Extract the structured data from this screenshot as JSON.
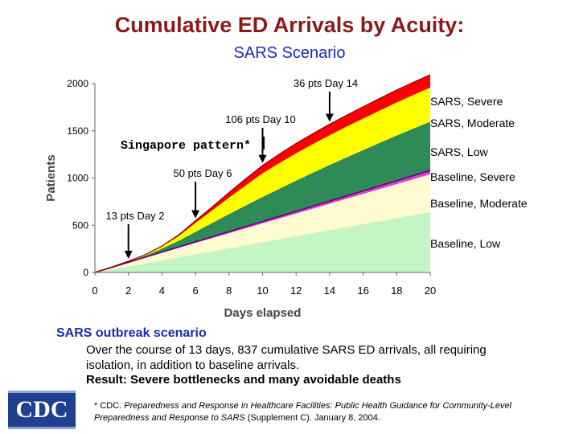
{
  "header": {
    "title": "Cumulative ED Arrivals by Acuity:",
    "subtitle": "SARS Scenario"
  },
  "chart_data": {
    "type": "area",
    "xlabel": "Days elapsed",
    "ylabel": "Patients",
    "xlim": [
      0,
      20
    ],
    "ylim": [
      0,
      2000
    ],
    "xticks": [
      0,
      2,
      4,
      6,
      8,
      10,
      12,
      14,
      16,
      18,
      20
    ],
    "yticks": [
      0,
      500,
      1000,
      1500,
      2000
    ],
    "x": [
      0,
      1,
      2,
      3,
      4,
      5,
      6,
      7,
      8,
      9,
      10,
      11,
      12,
      13,
      14,
      15,
      16,
      17,
      18,
      19,
      20
    ],
    "series": [
      {
        "name": "Baseline, Low",
        "color": "#c4f5c4",
        "values": [
          0,
          32,
          64,
          96,
          128,
          160,
          192,
          224,
          256,
          288,
          320,
          352,
          384,
          416,
          448,
          480,
          512,
          544,
          576,
          608,
          640
        ]
      },
      {
        "name": "Baseline, Moderate",
        "color": "#fdfbcf",
        "values": [
          0,
          20,
          40,
          60,
          80,
          100,
          120,
          140,
          160,
          180,
          200,
          220,
          240,
          260,
          280,
          300,
          320,
          340,
          360,
          380,
          400
        ]
      },
      {
        "name": "Baseline, Severe",
        "color": "#d63ad6",
        "values": [
          0,
          2,
          4,
          6,
          8,
          10,
          12,
          14,
          16,
          18,
          20,
          22,
          24,
          26,
          28,
          30,
          32,
          34,
          36,
          38,
          40
        ]
      },
      {
        "name": "SARS, Low",
        "color": "#2e8b57",
        "values": [
          0,
          2,
          6,
          14,
          36,
          66,
          106,
          146,
          186,
          224,
          260,
          292,
          324,
          354,
          382,
          408,
          432,
          456,
          478,
          498,
          516
        ]
      },
      {
        "name": "SARS, Moderate",
        "color": "#ffff00",
        "values": [
          0,
          1,
          4,
          10,
          22,
          50,
          96,
          134,
          174,
          212,
          250,
          272,
          290,
          304,
          316,
          326,
          334,
          342,
          350,
          356,
          362
        ]
      },
      {
        "name": "SARS, Severe",
        "color": "#ff0000",
        "values": [
          0,
          0,
          1,
          2,
          6,
          12,
          22,
          36,
          54,
          70,
          84,
          96,
          104,
          110,
          116,
          120,
          124,
          128,
          132,
          134,
          136
        ]
      }
    ],
    "legend": [
      "SARS, Severe",
      "SARS, Moderate",
      "SARS, Low",
      "Baseline, Severe",
      "Baseline, Moderate",
      "Baseline, Low"
    ],
    "annotations": [
      {
        "text": "36 pts Day 14",
        "day": 14
      },
      {
        "text": "106 pts Day 10",
        "day": 10
      },
      {
        "text": "50 pts Day 6",
        "day": 6
      },
      {
        "text": "13 pts Day 2",
        "day": 2
      },
      {
        "text": "Singapore pattern*"
      }
    ]
  },
  "notes": {
    "heading": "SARS outbreak scenario",
    "body": "Over the course of 13 days, 837 cumulative SARS ED arrivals, all requiring isolation, in addition to baseline arrivals.",
    "result": "Result: Severe bottlenecks and many avoidable deaths"
  },
  "footnote": {
    "prefix": "* CDC.",
    "doc": "Preparedness and Response in Healthcare Facilities: Public Health Guidance for Community-Level Preparedness and Response to SARS",
    "suffix": "(Supplement C).  January 8, 2004."
  },
  "logo": {
    "text": "CDC"
  }
}
